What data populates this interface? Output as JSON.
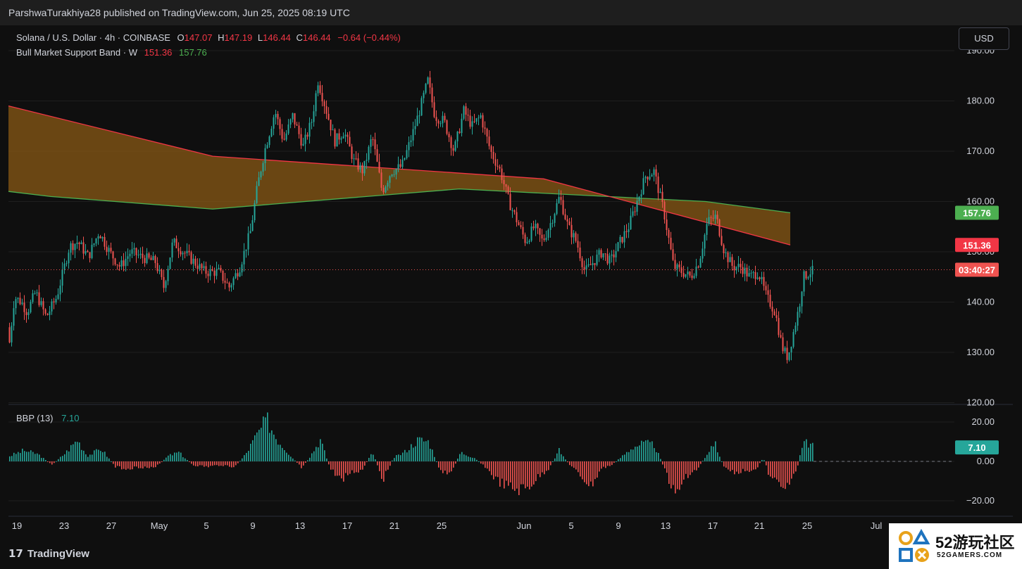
{
  "header": {
    "published_by": "ParshwaTurakhiya28 published on TradingView.com, Jun 25, 2025 08:19 UTC"
  },
  "legend": {
    "symbol": "Solana / U.S. Dollar · 4h · COINBASE",
    "o_label": "O",
    "o_value": "147.07",
    "h_label": "H",
    "h_value": "147.19",
    "l_label": "L",
    "l_value": "146.44",
    "c_label": "C",
    "c_value": "146.44",
    "change": "−0.64 (−0.44%)",
    "band_name": "Bull Market Support Band · W",
    "band_lower": "151.36",
    "band_upper": "157.76",
    "bbp_name": "BBP (13)",
    "bbp_value": "7.10"
  },
  "controls": {
    "currency": "USD"
  },
  "footer": {
    "brand": "TradingView"
  },
  "watermark": {
    "text": "52游玩社区",
    "sub": "52GAMERS.COM"
  },
  "colors": {
    "up": "#26a69a",
    "down": "#ef5350",
    "band_upper": "#4caf50",
    "band_lower": "#f23645",
    "band_fill": "#8a5a16",
    "grid": "#1f1f1f",
    "bg": "#0f0f0f"
  },
  "chart_data": [
    {
      "type": "candlestick",
      "title": "Solana / U.S. Dollar · 4h · COINBASE",
      "ylim": [
        120,
        190
      ],
      "y_ticks": [
        "120.00",
        "130.00",
        "140.00",
        "150.00",
        "160.00",
        "170.00",
        "180.00",
        "190.00"
      ],
      "x_tick_labels": [
        "19",
        "23",
        "27",
        "May",
        "5",
        "9",
        "13",
        "17",
        "21",
        "25",
        "Jun",
        "5",
        "9",
        "13",
        "17",
        "21",
        "25",
        "Jul"
      ],
      "price_path": [
        [
          0,
          135
        ],
        [
          3,
          132
        ],
        [
          10,
          141
        ],
        [
          20,
          140
        ],
        [
          28,
          138
        ],
        [
          40,
          142
        ],
        [
          55,
          137
        ],
        [
          70,
          141
        ],
        [
          88,
          151
        ],
        [
          100,
          152
        ],
        [
          115,
          149
        ],
        [
          130,
          154
        ],
        [
          145,
          150
        ],
        [
          160,
          147
        ],
        [
          175,
          150
        ],
        [
          190,
          149
        ],
        [
          210,
          148
        ],
        [
          222,
          143
        ],
        [
          235,
          152
        ],
        [
          250,
          150
        ],
        [
          265,
          148
        ],
        [
          280,
          146
        ],
        [
          300,
          146
        ],
        [
          315,
          143
        ],
        [
          330,
          147
        ],
        [
          345,
          154
        ],
        [
          355,
          163
        ],
        [
          365,
          170
        ],
        [
          380,
          178
        ],
        [
          392,
          172
        ],
        [
          405,
          177
        ],
        [
          420,
          171
        ],
        [
          432,
          176
        ],
        [
          441,
          184
        ],
        [
          455,
          177
        ],
        [
          465,
          172
        ],
        [
          478,
          174
        ],
        [
          492,
          168
        ],
        [
          505,
          166
        ],
        [
          518,
          173
        ],
        [
          532,
          162
        ],
        [
          545,
          166
        ],
        [
          560,
          167
        ],
        [
          572,
          172
        ],
        [
          585,
          178
        ],
        [
          597,
          184
        ],
        [
          607,
          177
        ],
        [
          620,
          176
        ],
        [
          634,
          170
        ],
        [
          648,
          178
        ],
        [
          660,
          175
        ],
        [
          672,
          177
        ],
        [
          686,
          170
        ],
        [
          700,
          166
        ],
        [
          712,
          160
        ],
        [
          724,
          156
        ],
        [
          736,
          152
        ],
        [
          748,
          155
        ],
        [
          760,
          152
        ],
        [
          772,
          156
        ],
        [
          784,
          161
        ],
        [
          796,
          155
        ],
        [
          808,
          152
        ],
        [
          820,
          146
        ],
        [
          832,
          148
        ],
        [
          844,
          150
        ],
        [
          856,
          148
        ],
        [
          870,
          152
        ],
        [
          882,
          155
        ],
        [
          894,
          160
        ],
        [
          906,
          165
        ],
        [
          918,
          166
        ],
        [
          932,
          158
        ],
        [
          946,
          147
        ],
        [
          958,
          146
        ],
        [
          970,
          145
        ],
        [
          982,
          148
        ],
        [
          994,
          156
        ],
        [
          1006,
          157
        ],
        [
          1018,
          150
        ],
        [
          1030,
          147
        ],
        [
          1042,
          147
        ],
        [
          1054,
          145
        ],
        [
          1066,
          146
        ],
        [
          1078,
          141
        ],
        [
          1090,
          138
        ],
        [
          1100,
          131
        ],
        [
          1108,
          129
        ],
        [
          1116,
          134
        ],
        [
          1124,
          139
        ],
        [
          1130,
          145
        ],
        [
          1140,
          146
        ],
        [
          1150,
          146.44
        ]
      ],
      "last_price": "146.44",
      "countdown": "03:40:27"
    },
    {
      "type": "area",
      "title": "Bull Market Support Band · W",
      "series": [
        {
          "name": "upper",
          "label": "157.76",
          "points": [
            [
              0,
              162
            ],
            [
              60,
              161
            ],
            [
              290,
              158.5
            ],
            [
              640,
              162.5
            ],
            [
              990,
              160
            ],
            [
              1110,
              157.76
            ]
          ]
        },
        {
          "name": "lower",
          "label": "151.36",
          "points": [
            [
              0,
              179
            ],
            [
              290,
              169
            ],
            [
              760,
              164.5
            ],
            [
              1110,
              151.36
            ]
          ]
        }
      ]
    },
    {
      "type": "bar",
      "title": "BBP (13)",
      "ylim": [
        -27,
        28
      ],
      "y_ticks": [
        "20.00",
        "0.00",
        "−20.00"
      ],
      "value_label": "7.10",
      "envelope": [
        [
          0,
          3
        ],
        [
          20,
          6
        ],
        [
          40,
          4
        ],
        [
          60,
          -2
        ],
        [
          80,
          5
        ],
        [
          96,
          12
        ],
        [
          110,
          3
        ],
        [
          130,
          7
        ],
        [
          150,
          -3
        ],
        [
          165,
          -4
        ],
        [
          185,
          -3
        ],
        [
          205,
          -4
        ],
        [
          225,
          3
        ],
        [
          240,
          5
        ],
        [
          260,
          -2
        ],
        [
          280,
          -3
        ],
        [
          300,
          -2
        ],
        [
          320,
          -3
        ],
        [
          335,
          4
        ],
        [
          350,
          14
        ],
        [
          365,
          23
        ],
        [
          380,
          12
        ],
        [
          395,
          5
        ],
        [
          415,
          -4
        ],
        [
          430,
          5
        ],
        [
          441,
          12
        ],
        [
          455,
          -4
        ],
        [
          470,
          -10
        ],
        [
          485,
          -6
        ],
        [
          500,
          -5
        ],
        [
          515,
          5
        ],
        [
          530,
          -10
        ],
        [
          545,
          2
        ],
        [
          560,
          5
        ],
        [
          580,
          12
        ],
        [
          595,
          11
        ],
        [
          610,
          -4
        ],
        [
          625,
          -8
        ],
        [
          640,
          5
        ],
        [
          660,
          2
        ],
        [
          675,
          -3
        ],
        [
          690,
          -10
        ],
        [
          705,
          -14
        ],
        [
          720,
          -16
        ],
        [
          735,
          -15
        ],
        [
          750,
          -9
        ],
        [
          765,
          -4
        ],
        [
          780,
          6
        ],
        [
          795,
          -2
        ],
        [
          810,
          -8
        ],
        [
          825,
          -14
        ],
        [
          840,
          -4
        ],
        [
          855,
          -2
        ],
        [
          870,
          3
        ],
        [
          885,
          8
        ],
        [
          900,
          10
        ],
        [
          915,
          9
        ],
        [
          930,
          -4
        ],
        [
          945,
          -20
        ],
        [
          960,
          -8
        ],
        [
          975,
          -5
        ],
        [
          990,
          4
        ],
        [
          1000,
          11
        ],
        [
          1015,
          -4
        ],
        [
          1030,
          -6
        ],
        [
          1045,
          -5
        ],
        [
          1060,
          -4
        ],
        [
          1070,
          2
        ],
        [
          1080,
          -10
        ],
        [
          1095,
          -12
        ],
        [
          1108,
          -13
        ],
        [
          1118,
          -4
        ],
        [
          1126,
          11
        ],
        [
          1140,
          9
        ],
        [
          1150,
          7.1
        ]
      ]
    }
  ]
}
